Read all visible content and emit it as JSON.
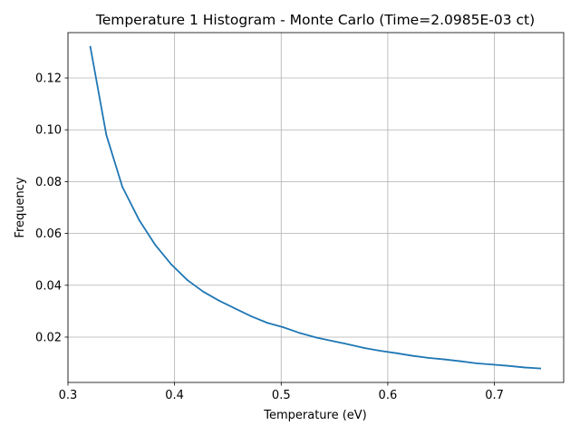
{
  "chart_data": {
    "type": "line",
    "title": "Temperature 1 Histogram - Monte Carlo (Time=2.0985E-03 ct)",
    "xlabel": "Temperature (eV)",
    "ylabel": "Frequency",
    "xlim": [
      0.3,
      0.765
    ],
    "ylim": [
      0.0025,
      0.1375
    ],
    "x_ticks": [
      0.3,
      0.4,
      0.5,
      0.6,
      0.7
    ],
    "x_tick_labels": [
      "0.3",
      "0.4",
      "0.5",
      "0.6",
      "0.7"
    ],
    "y_ticks": [
      0.02,
      0.04,
      0.06,
      0.08,
      0.1,
      0.12
    ],
    "y_tick_labels": [
      "0.02",
      "0.04",
      "0.06",
      "0.08",
      "0.10",
      "0.12"
    ],
    "grid": true,
    "line_color": "#1f77b4",
    "series": [
      {
        "x": [
          0.321,
          0.336,
          0.351,
          0.367,
          0.382,
          0.397,
          0.412,
          0.427,
          0.442,
          0.457,
          0.472,
          0.487,
          0.502,
          0.518,
          0.533,
          0.548,
          0.563,
          0.578,
          0.593,
          0.608,
          0.623,
          0.638,
          0.653,
          0.668,
          0.683,
          0.698,
          0.713,
          0.728,
          0.743
        ],
        "values": [
          0.132,
          0.098,
          0.078,
          0.065,
          0.0555,
          0.048,
          0.042,
          0.0375,
          0.034,
          0.031,
          0.028,
          0.0255,
          0.0238,
          0.0215,
          0.0198,
          0.0185,
          0.0172,
          0.0158,
          0.0147,
          0.0138,
          0.0128,
          0.012,
          0.0114,
          0.0107,
          0.0099,
          0.0094,
          0.0089,
          0.0083,
          0.0079
        ]
      }
    ]
  }
}
